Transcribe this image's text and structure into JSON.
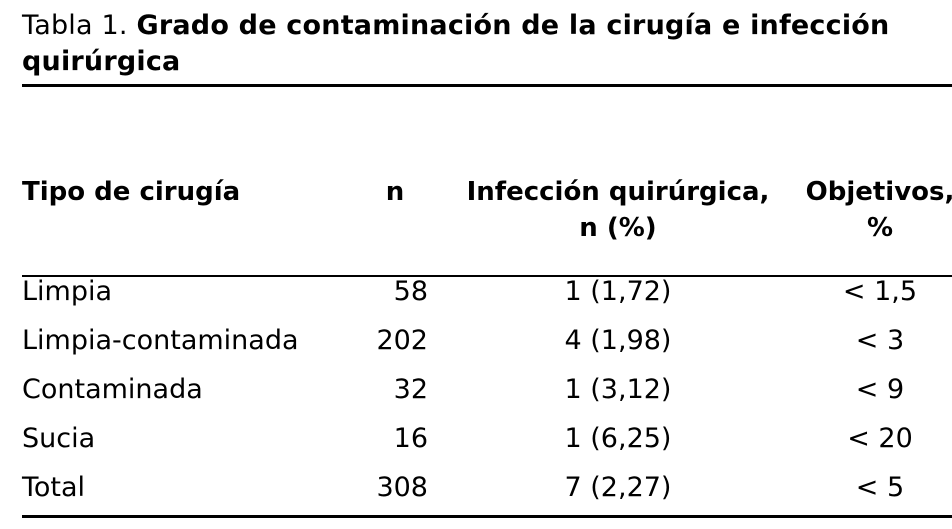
{
  "caption": {
    "lead": "Tabla 1.",
    "title": "Grado de contaminación de la cirugía e infección quirúrgica"
  },
  "table": {
    "headers": {
      "type": "Tipo de cirugía",
      "n": "n",
      "infection_line1": "Infección quirúrgica,",
      "infection_line2": "n (%)",
      "objectives_line1": "Objetivos,",
      "objectives_line2": "%"
    },
    "rows": [
      {
        "type": "Limpia",
        "n": "58",
        "infection": "1 (1,72)",
        "objective": "< 1,5"
      },
      {
        "type": "Limpia-contaminada",
        "n": "202",
        "infection": "4 (1,98)",
        "objective": "< 3"
      },
      {
        "type": "Contaminada",
        "n": "32",
        "infection": "1 (3,12)",
        "objective": "< 9"
      },
      {
        "type": "Sucia",
        "n": "16",
        "infection": "1 (6,25)",
        "objective": "< 20"
      },
      {
        "type": "Total",
        "n": "308",
        "infection": "7 (2,27)",
        "objective": "< 5"
      }
    ]
  }
}
